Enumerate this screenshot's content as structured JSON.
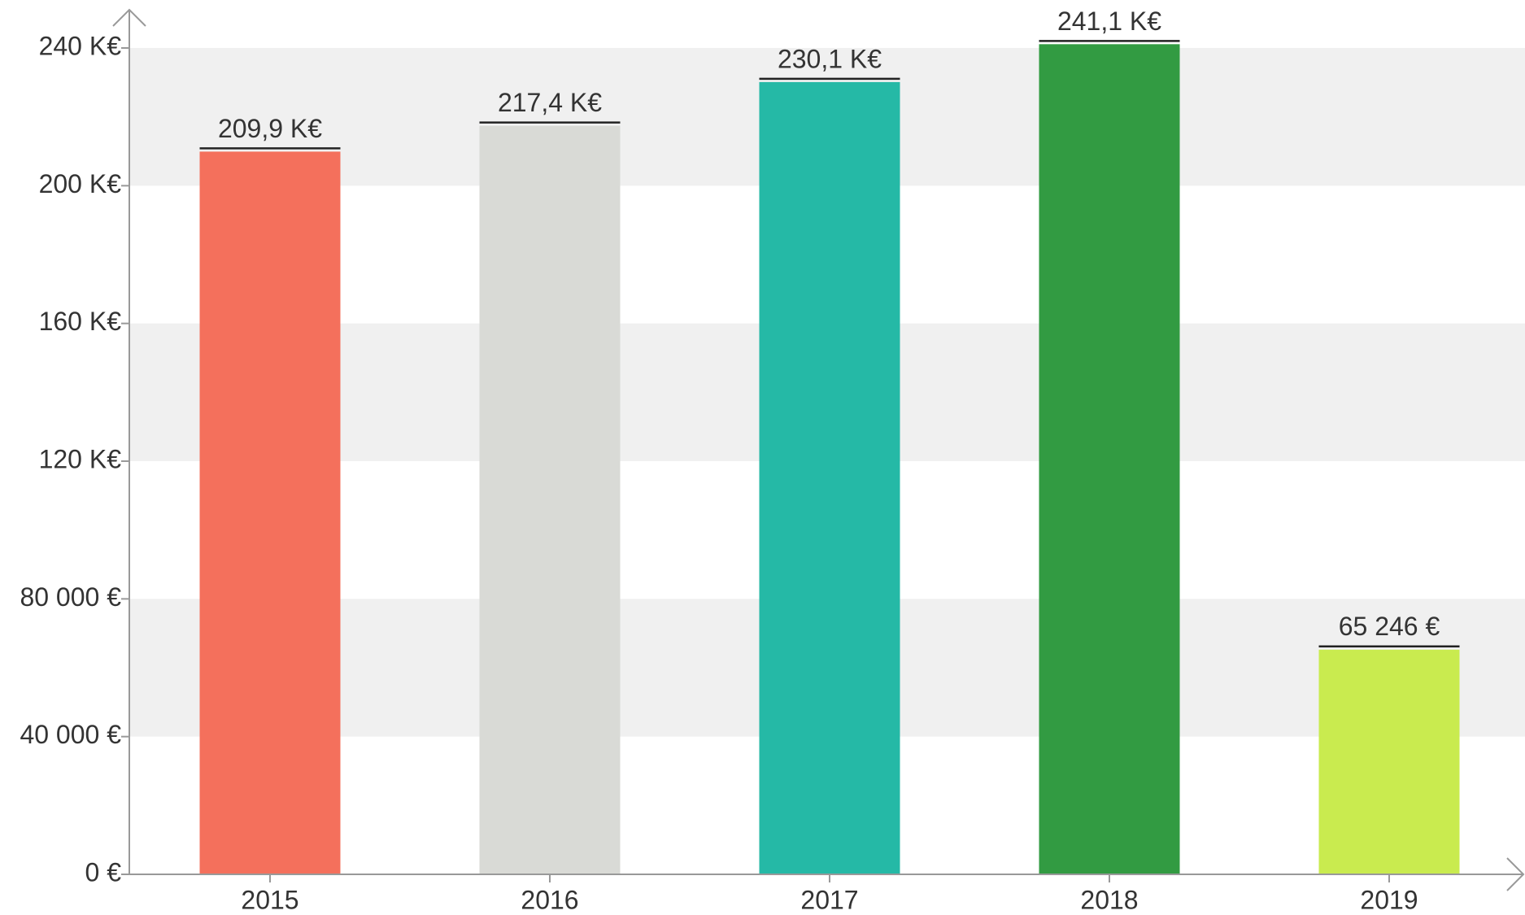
{
  "chart_data": {
    "type": "bar",
    "categories": [
      "2015",
      "2016",
      "2017",
      "2018",
      "2019"
    ],
    "values": [
      209900,
      217400,
      230100,
      241100,
      65246
    ],
    "value_labels": [
      "209,9 K€",
      "217,4 K€",
      "230,1 K€",
      "241,1 K€",
      "65 246 €"
    ],
    "colors": [
      "#f4705c",
      "#d9dad6",
      "#25b9a6",
      "#329b42",
      "#c9eb4f"
    ],
    "ylim": [
      0,
      240000
    ],
    "yticks": [
      {
        "value": 0,
        "label": "0 €"
      },
      {
        "value": 40000,
        "label": "40 000 €"
      },
      {
        "value": 80000,
        "label": "80 000 €"
      },
      {
        "value": 120000,
        "label": "120 K€"
      },
      {
        "value": 160000,
        "label": "160 K€"
      },
      {
        "value": 200000,
        "label": "200 K€"
      },
      {
        "value": 240000,
        "label": "240 K€"
      }
    ],
    "grid": "bands"
  }
}
